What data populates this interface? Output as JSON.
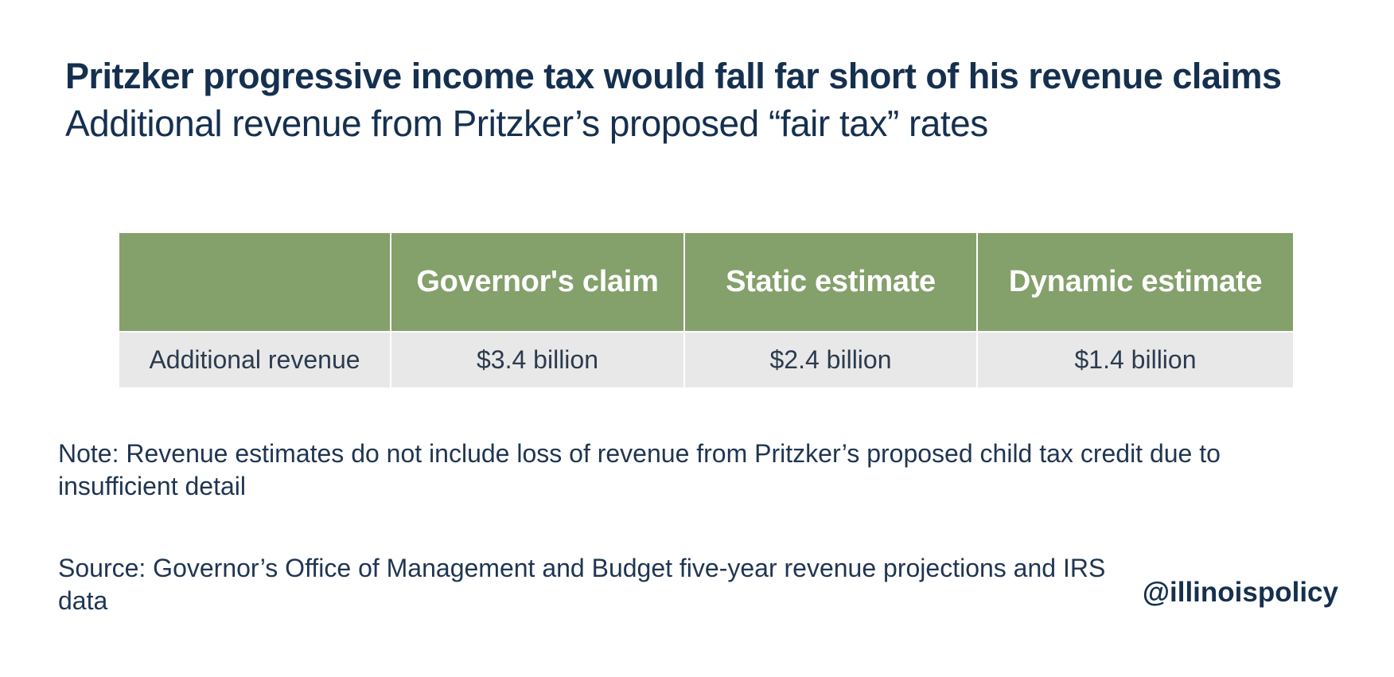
{
  "title": "Pritzker progressive income tax would fall far short of his revenue claims",
  "subtitle": "Additional revenue from Pritzker’s proposed “fair tax” rates",
  "chart_data": {
    "type": "table",
    "title": "Pritzker progressive income tax would fall far short of his revenue claims",
    "subtitle": "Additional revenue from Pritzker’s proposed “fair tax” rates",
    "columns": [
      "",
      "Governor's claim",
      "Static estimate",
      "Dynamic estimate"
    ],
    "rows": [
      {
        "label": "Additional revenue",
        "cells": [
          "$3.4 billion",
          "$2.4 billion",
          "$1.4 billion"
        ],
        "values": [
          3.4,
          2.4,
          1.4
        ],
        "unit": "billion USD"
      }
    ]
  },
  "colors": {
    "header_bg": "#84a06b",
    "row_bg": "#e9e8e9",
    "title_text": "#15304f"
  },
  "note": "Note: Revenue estimates do not include loss of revenue from Pritzker’s proposed child tax credit due to insufficient detail",
  "source": "Source: Governor’s Office of Management and Budget five-year revenue projections and IRS data",
  "handle": "@illinoispolicy"
}
